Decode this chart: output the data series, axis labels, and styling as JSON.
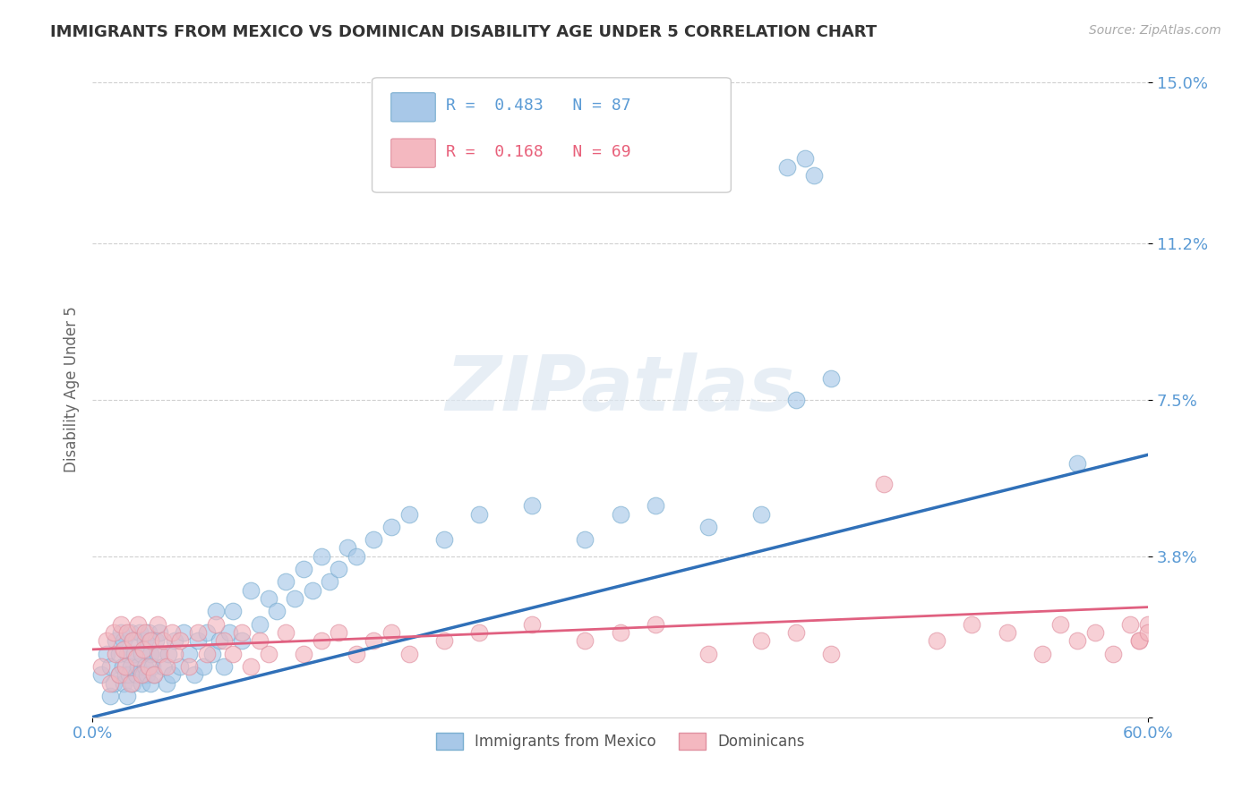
{
  "title": "IMMIGRANTS FROM MEXICO VS DOMINICAN DISABILITY AGE UNDER 5 CORRELATION CHART",
  "source": "Source: ZipAtlas.com",
  "ylabel": "Disability Age Under 5",
  "xlim": [
    0.0,
    0.6
  ],
  "ylim": [
    0.0,
    0.155
  ],
  "legend_mexico_r": "0.483",
  "legend_mexico_n": "87",
  "legend_dominican_r": "0.168",
  "legend_dominican_n": "69",
  "watermark": "ZIPatlas",
  "color_mexico": "#a8c8e8",
  "color_dominican": "#f4b8c0",
  "color_line_mexico": "#3070b8",
  "color_line_dominican": "#e06080",
  "background_color": "#ffffff",
  "grid_color": "#d0d0d0",
  "ytick_vals": [
    0.0,
    0.038,
    0.075,
    0.112,
    0.15
  ],
  "ytick_labels": [
    "",
    "3.8%",
    "7.5%",
    "11.2%",
    "15.0%"
  ],
  "mexico_scatter_x": [
    0.005,
    0.008,
    0.01,
    0.01,
    0.012,
    0.013,
    0.015,
    0.015,
    0.016,
    0.017,
    0.018,
    0.018,
    0.019,
    0.02,
    0.02,
    0.021,
    0.022,
    0.022,
    0.023,
    0.024,
    0.025,
    0.025,
    0.026,
    0.027,
    0.028,
    0.028,
    0.029,
    0.03,
    0.03,
    0.031,
    0.032,
    0.033,
    0.033,
    0.034,
    0.035,
    0.036,
    0.037,
    0.038,
    0.04,
    0.042,
    0.043,
    0.045,
    0.047,
    0.05,
    0.052,
    0.055,
    0.058,
    0.06,
    0.063,
    0.065,
    0.068,
    0.07,
    0.072,
    0.075,
    0.078,
    0.08,
    0.085,
    0.09,
    0.095,
    0.1,
    0.105,
    0.11,
    0.115,
    0.12,
    0.125,
    0.13,
    0.135,
    0.14,
    0.145,
    0.15,
    0.16,
    0.17,
    0.18,
    0.2,
    0.22,
    0.25,
    0.28,
    0.3,
    0.32,
    0.35,
    0.38,
    0.4,
    0.42,
    0.395,
    0.405,
    0.41,
    0.56
  ],
  "mexico_scatter_y": [
    0.01,
    0.015,
    0.005,
    0.012,
    0.008,
    0.018,
    0.01,
    0.015,
    0.02,
    0.012,
    0.008,
    0.018,
    0.01,
    0.005,
    0.015,
    0.01,
    0.02,
    0.012,
    0.008,
    0.015,
    0.01,
    0.018,
    0.012,
    0.02,
    0.008,
    0.015,
    0.01,
    0.012,
    0.018,
    0.01,
    0.02,
    0.008,
    0.015,
    0.012,
    0.01,
    0.018,
    0.015,
    0.02,
    0.012,
    0.008,
    0.015,
    0.01,
    0.018,
    0.012,
    0.02,
    0.015,
    0.01,
    0.018,
    0.012,
    0.02,
    0.015,
    0.025,
    0.018,
    0.012,
    0.02,
    0.025,
    0.018,
    0.03,
    0.022,
    0.028,
    0.025,
    0.032,
    0.028,
    0.035,
    0.03,
    0.038,
    0.032,
    0.035,
    0.04,
    0.038,
    0.042,
    0.045,
    0.048,
    0.042,
    0.048,
    0.05,
    0.042,
    0.048,
    0.05,
    0.045,
    0.048,
    0.075,
    0.08,
    0.13,
    0.132,
    0.128,
    0.06
  ],
  "dominican_scatter_x": [
    0.005,
    0.008,
    0.01,
    0.012,
    0.013,
    0.015,
    0.016,
    0.018,
    0.019,
    0.02,
    0.022,
    0.023,
    0.025,
    0.026,
    0.028,
    0.029,
    0.03,
    0.032,
    0.033,
    0.035,
    0.037,
    0.038,
    0.04,
    0.042,
    0.045,
    0.047,
    0.05,
    0.055,
    0.06,
    0.065,
    0.07,
    0.075,
    0.08,
    0.085,
    0.09,
    0.095,
    0.1,
    0.11,
    0.12,
    0.13,
    0.14,
    0.15,
    0.16,
    0.17,
    0.18,
    0.2,
    0.22,
    0.25,
    0.28,
    0.3,
    0.32,
    0.35,
    0.38,
    0.4,
    0.42,
    0.45,
    0.48,
    0.5,
    0.52,
    0.54,
    0.55,
    0.56,
    0.57,
    0.58,
    0.59,
    0.595,
    0.6,
    0.595,
    0.6
  ],
  "dominican_scatter_y": [
    0.012,
    0.018,
    0.008,
    0.02,
    0.015,
    0.01,
    0.022,
    0.016,
    0.012,
    0.02,
    0.008,
    0.018,
    0.014,
    0.022,
    0.01,
    0.016,
    0.02,
    0.012,
    0.018,
    0.01,
    0.022,
    0.015,
    0.018,
    0.012,
    0.02,
    0.015,
    0.018,
    0.012,
    0.02,
    0.015,
    0.022,
    0.018,
    0.015,
    0.02,
    0.012,
    0.018,
    0.015,
    0.02,
    0.015,
    0.018,
    0.02,
    0.015,
    0.018,
    0.02,
    0.015,
    0.018,
    0.02,
    0.022,
    0.018,
    0.02,
    0.022,
    0.015,
    0.018,
    0.02,
    0.015,
    0.055,
    0.018,
    0.022,
    0.02,
    0.015,
    0.022,
    0.018,
    0.02,
    0.015,
    0.022,
    0.018,
    0.022,
    0.018,
    0.02
  ],
  "regression_mexico_x0": 0.0,
  "regression_mexico_y0": 0.0,
  "regression_mexico_x1": 0.6,
  "regression_mexico_y1": 0.062,
  "regression_dominican_x0": 0.0,
  "regression_dominican_y0": 0.016,
  "regression_dominican_x1": 0.6,
  "regression_dominican_y1": 0.026
}
